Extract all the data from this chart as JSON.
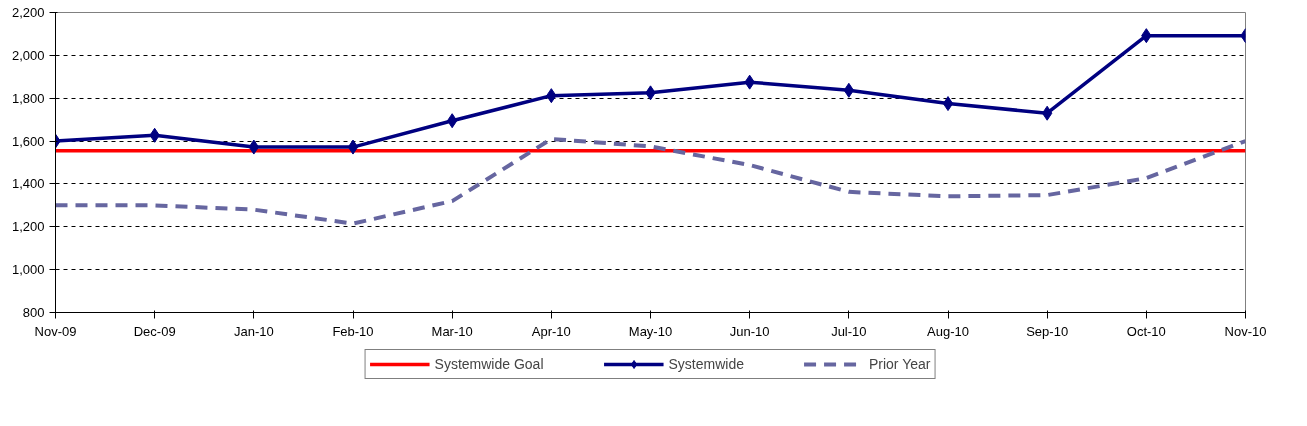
{
  "chart_data": {
    "type": "line",
    "categories": [
      "Nov-09",
      "Dec-09",
      "Jan-10",
      "Feb-10",
      "Mar-10",
      "Apr-10",
      "May-10",
      "Jun-10",
      "Jul-10",
      "Aug-10",
      "Sep-10",
      "Oct-10",
      "Nov-10"
    ],
    "series": [
      {
        "name": "Systemwide Goal",
        "color": "#ff0000",
        "marker": "none",
        "line_style": "solid",
        "values": [
          1555,
          1555,
          1555,
          1555,
          1555,
          1555,
          1555,
          1555,
          1555,
          1555,
          1555,
          1555,
          1555
        ]
      },
      {
        "name": "Systemwide",
        "color": "#000080",
        "marker": "diamond",
        "line_style": "solid",
        "values": [
          1600,
          1627,
          1572,
          1572,
          1695,
          1812,
          1825,
          1875,
          1837,
          1775,
          1730,
          2092,
          2092
        ]
      },
      {
        "name": "Prior Year",
        "color": "#6666a0",
        "marker": "none",
        "line_style": "dashed",
        "values": [
          1300,
          1300,
          1280,
          1215,
          1320,
          1610,
          1575,
          1488,
          1363,
          1342,
          1348,
          1427,
          1600
        ]
      }
    ],
    "ylim": [
      800,
      2200
    ],
    "yticks": [
      {
        "value": 800,
        "label": "800"
      },
      {
        "value": 1000,
        "label": "1,000"
      },
      {
        "value": 1200,
        "label": "1,200"
      },
      {
        "value": 1400,
        "label": "1,400"
      },
      {
        "value": 1600,
        "label": "1,600"
      },
      {
        "value": 1800,
        "label": "1,800"
      },
      {
        "value": 2000,
        "label": "2,000"
      },
      {
        "value": 2200,
        "label": "2,200"
      }
    ],
    "grid": "y",
    "legend": "bottom"
  }
}
